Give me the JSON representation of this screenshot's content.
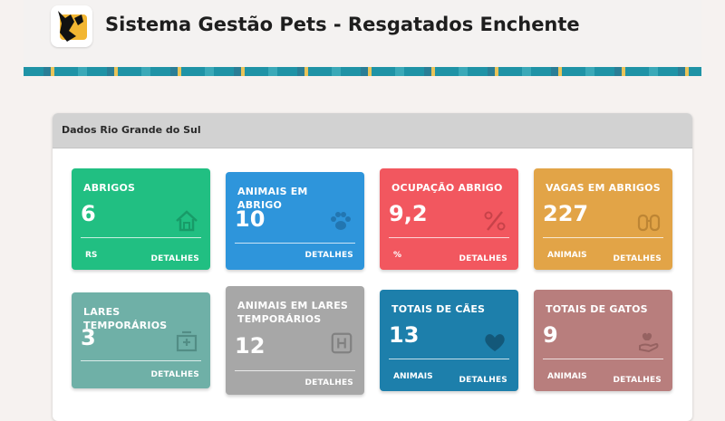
{
  "header": {
    "title": "Sistema Gestão Pets - Resgatados Enchente"
  },
  "panel": {
    "title": "Dados Rio Grande do Sul"
  },
  "colors": {
    "green": "#21bf82",
    "blue": "#2e95db",
    "red": "#f2575f",
    "orange": "#e2a447",
    "teal": "#6fb0a7",
    "gray": "#a7a7a7",
    "darkblue": "#1d7fab",
    "mauve": "#b87e7d"
  },
  "cards": [
    {
      "title": "ABRIGOS",
      "value": "6",
      "unit": "RS",
      "details": "DETALHES",
      "icon": "home-icon"
    },
    {
      "title": "ANIMAIS EM ABRIGO",
      "value": "10",
      "unit": "",
      "details": "DETALHES",
      "icon": "paw-icon"
    },
    {
      "title": "OCUPAÇÃO ABRIGO",
      "value": "9,2",
      "unit": "%",
      "details": "DETALHES",
      "icon": "percent-icon"
    },
    {
      "title": "VAGAS EM ABRIGOS",
      "value": "227",
      "unit": "ANIMAIS",
      "details": "DETALHES",
      "icon": "binoculars-icon"
    },
    {
      "title": "LARES TEMPORÁRIOS",
      "value": "3",
      "unit": "",
      "details": "DETALHES",
      "icon": "hospital-icon"
    },
    {
      "title": "ANIMAIS EM LARES TEMPORÁRIOS",
      "value": "12",
      "unit": "",
      "details": "DETALHES",
      "icon": "h-square-icon"
    },
    {
      "title": "TOTAIS DE CÃES",
      "value": "13",
      "unit": "ANIMAIS",
      "details": "DETALHES",
      "icon": "heart-icon"
    },
    {
      "title": "TOTAIS DE GATOS",
      "value": "9",
      "unit": "ANIMAIS",
      "details": "DETALHES",
      "icon": "hand-heart-icon"
    }
  ]
}
